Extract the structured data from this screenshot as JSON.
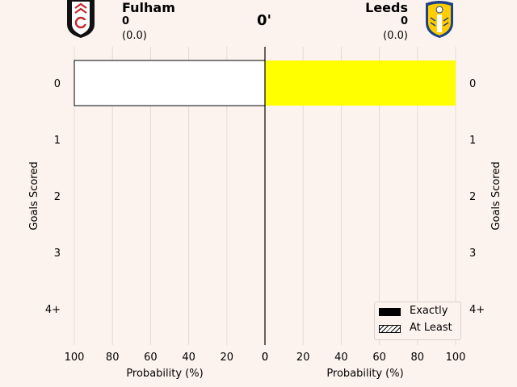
{
  "header": {
    "home": {
      "name": "Fulham",
      "score": "0",
      "xg": "(0.0)",
      "crest": "fulham-crest-icon"
    },
    "away": {
      "name": "Leeds",
      "score": "0",
      "xg": "(0.0)",
      "crest": "leeds-crest-icon"
    },
    "minute": "0'"
  },
  "chart_data": {
    "type": "bar",
    "orientation": "horizontal-mirrored",
    "categories": [
      "0",
      "1",
      "2",
      "3",
      "4+"
    ],
    "ylabel": "Goals Scored",
    "xlabel": "Probability (%)",
    "xlim": [
      0,
      100
    ],
    "xticks": [
      "0",
      "20",
      "40",
      "60",
      "80",
      "100"
    ],
    "grid": "vertical",
    "home_team": "Fulham",
    "away_team": "Leeds",
    "home_exactly": [
      100,
      0,
      0,
      0,
      0
    ],
    "away_exactly": [
      100,
      0,
      0,
      0,
      0
    ],
    "colors": {
      "home": "#ffffff",
      "away": "#ffff00"
    },
    "legend": {
      "entries": [
        "Exactly",
        "At Least"
      ],
      "placement": "lower-right"
    }
  }
}
